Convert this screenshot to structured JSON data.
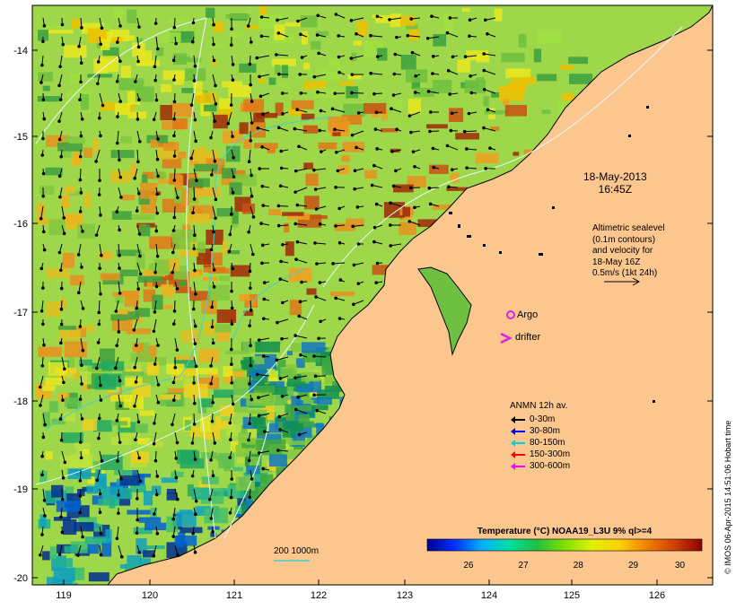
{
  "map": {
    "x_ticks": [
      "119",
      "120",
      "121",
      "122",
      "123",
      "124",
      "125",
      "126"
    ],
    "y_ticks": [
      "-14",
      "-15",
      "-16",
      "-17",
      "-18",
      "-19",
      "-20"
    ],
    "land_color": "#fcc68f"
  },
  "annotations": {
    "date_line1": "18-May-2013",
    "date_line2": "16:45Z",
    "altimetry_lines": [
      "Altimetric sealevel",
      "(0.1m contours)",
      "and velocity for",
      "18-May 16Z",
      "0.5m/s (1kt 24h)"
    ],
    "argo_label": "Argo",
    "argo_color": "#e020e0",
    "drifter_label": "drifter",
    "drifter_color": "#e020e0"
  },
  "anmn_legend": {
    "title": "ANMN 12h av.",
    "items": [
      {
        "label": "0-30m",
        "color": "#000000"
      },
      {
        "label": "30-80m",
        "color": "#0000ff"
      },
      {
        "label": "80-150m",
        "color": "#00d0d0"
      },
      {
        "label": "150-300m",
        "color": "#ff0000"
      },
      {
        "label": "300-600m",
        "color": "#ff00ff"
      }
    ]
  },
  "colorbar": {
    "title": "Temperature (°C) NOAA19_L3U 9% ql>=4",
    "ticks": [
      "26",
      "27",
      "28",
      "29",
      "30"
    ],
    "colors": [
      "#00008f",
      "#0030ff",
      "#00b0ff",
      "#00e0a0",
      "#20c040",
      "#80e000",
      "#e0f000",
      "#ffd000",
      "#f08000",
      "#d04000",
      "#8f0000"
    ]
  },
  "depth_label": "200  1000m",
  "credit": "© IMOS 06-Apr-2015 14:51:06 Hobart time"
}
